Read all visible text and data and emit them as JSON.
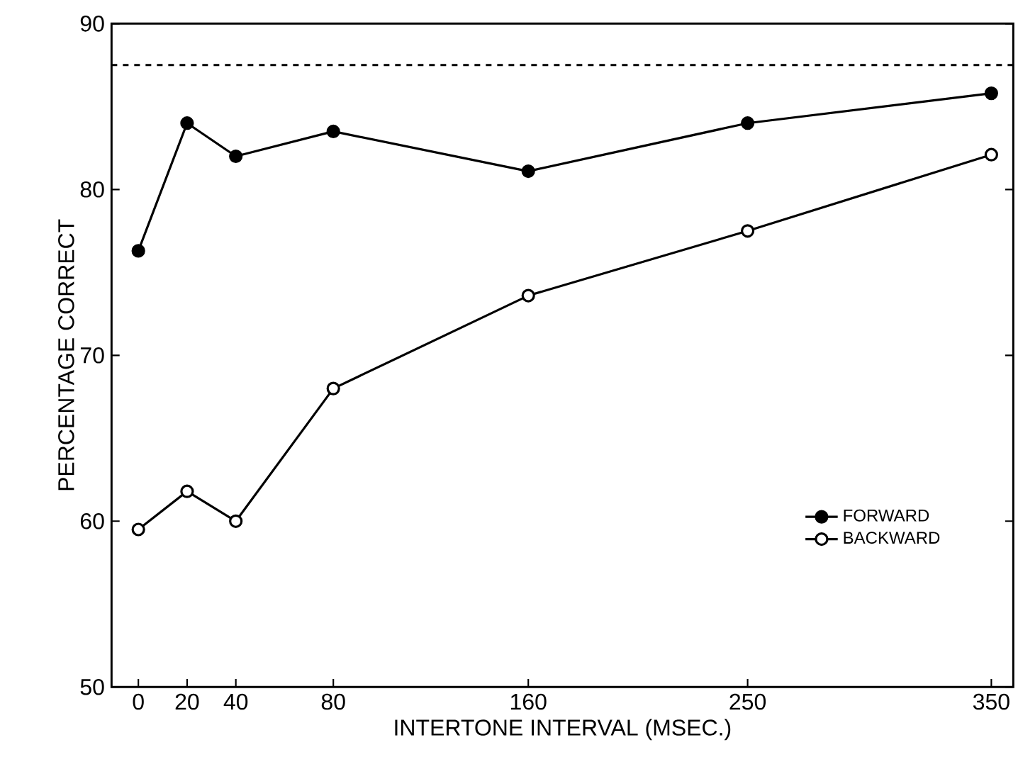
{
  "chart_data": {
    "type": "line",
    "xlabel": "INTERTONE INTERVAL (MSEC.)",
    "ylabel": "PERCENTAGE CORRECT",
    "x": [
      0,
      20,
      40,
      80,
      160,
      250,
      350
    ],
    "series": [
      {
        "name": "FORWARD",
        "color": "#000000",
        "values": [
          76.3,
          84.0,
          82.0,
          83.5,
          81.1,
          84.0,
          85.8
        ]
      },
      {
        "name": "BACKWARD",
        "color": "#000000",
        "values": [
          59.5,
          61.8,
          60.0,
          68.0,
          73.6,
          77.5,
          82.1
        ]
      }
    ],
    "xlim": [
      -11,
      359
    ],
    "ylim": [
      50,
      90
    ],
    "xticks": [
      0,
      20,
      40,
      80,
      160,
      250,
      350
    ],
    "yticks": [
      50,
      60,
      70,
      80,
      90
    ],
    "ref_lines": [
      {
        "axis": "y",
        "value": 87.5,
        "line_style": "dashed"
      }
    ],
    "legend": "bottom right",
    "marker": "circle",
    "line_style": "solid",
    "grid": false
  }
}
